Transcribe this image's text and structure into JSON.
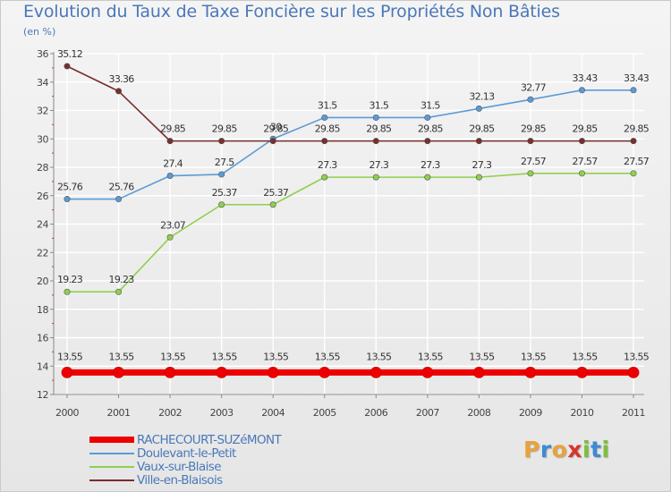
{
  "chart_data": {
    "type": "line",
    "title": "Evolution du Taux de Taxe Foncière sur les Propriétés Non Bâties",
    "ylabel": "(en %)",
    "xlabel": "",
    "ylim": [
      12,
      36
    ],
    "yticks": [
      12,
      14,
      16,
      18,
      20,
      22,
      24,
      26,
      28,
      30,
      32,
      34,
      36
    ],
    "categories": [
      "2000",
      "2001",
      "2002",
      "2003",
      "2004",
      "2005",
      "2006",
      "2007",
      "2008",
      "2009",
      "2010",
      "2011"
    ],
    "grid": true,
    "legend_position": "bottom-left",
    "series": [
      {
        "name": "RACHECOURT-SUZéMONT",
        "color": "#ee0000",
        "values": [
          13.55,
          13.55,
          13.55,
          13.55,
          13.55,
          13.55,
          13.55,
          13.55,
          13.55,
          13.55,
          13.55,
          13.55
        ],
        "labels": [
          "13.55",
          "13.55",
          "13.55",
          "13.55",
          "13.55",
          "13.55",
          "13.55",
          "13.55",
          "13.55",
          "13.55",
          "13.55",
          "13.55"
        ]
      },
      {
        "name": "Doulevant-le-Petit",
        "color": "#5b9bd5",
        "values": [
          25.76,
          25.76,
          27.4,
          27.5,
          30,
          31.5,
          31.5,
          31.5,
          32.13,
          32.77,
          33.43,
          33.43
        ],
        "labels": [
          "25.76",
          "25.76",
          "27.4",
          "27.5",
          "30",
          "31.5",
          "31.5",
          "31.5",
          "32.13",
          "32.77",
          "33.43",
          "33.43"
        ]
      },
      {
        "name": "Vaux-sur-Blaise",
        "color": "#8fd04f",
        "values": [
          19.23,
          19.23,
          23.07,
          25.37,
          25.37,
          27.3,
          27.3,
          27.3,
          27.3,
          27.57,
          27.57,
          27.57
        ],
        "labels": [
          "19.23",
          "19.23",
          "23.07",
          "25.37",
          "25.37",
          "27.3",
          "27.3",
          "27.3",
          "27.3",
          "27.57",
          "27.57",
          "27.57"
        ]
      },
      {
        "name": "Ville-en-Blaisois",
        "color": "#7a2e2e",
        "values": [
          35.12,
          33.36,
          29.85,
          29.85,
          29.85,
          29.85,
          29.85,
          29.85,
          29.85,
          29.85,
          29.85,
          29.85
        ],
        "labels": [
          "35.12",
          "33.36",
          "29.85",
          "29.85",
          "29.85",
          "29.85",
          "29.85",
          "29.85",
          "29.85",
          "29.85",
          "29.85",
          "29.85"
        ]
      }
    ]
  },
  "logo": {
    "letters": [
      "P",
      "r",
      "o",
      "x",
      "i",
      "t",
      "i"
    ],
    "colors": [
      "#e8a23a",
      "#3f8ad1",
      "#e8a23a",
      "#d9342b",
      "#7cbf3c",
      "#3f8ad1",
      "#7cbf3c"
    ]
  }
}
